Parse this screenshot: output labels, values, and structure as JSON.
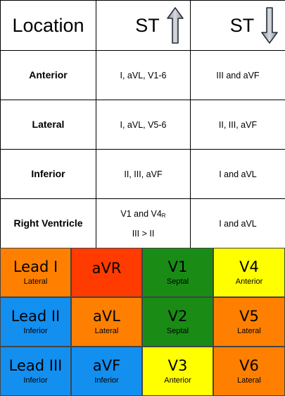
{
  "table": {
    "header": {
      "location": "Location",
      "st_up": "ST",
      "st_down": "ST",
      "up_arrow_icon": "up-arrow-icon",
      "down_arrow_icon": "down-arrow-icon"
    },
    "rows": [
      {
        "location": "Anterior",
        "elevation": "I, aVL, V1-6",
        "depression": "III and aVF"
      },
      {
        "location": "Lateral",
        "elevation": "I, aVL, V5-6",
        "depression": "II, III, aVF"
      },
      {
        "location": "Inferior",
        "elevation": "II, III, aVF",
        "depression": "I and aVL"
      },
      {
        "location": "Right Ventricle",
        "elevation_line1": "V1 and V4",
        "elevation_sub": "R",
        "elevation_line2": "III > II",
        "depression": "I and aVL"
      }
    ]
  },
  "leads": [
    {
      "name": "Lead I",
      "region": "Lateral",
      "color": "#ff8000"
    },
    {
      "name": "aVR",
      "region": "",
      "color": "#ff3b00"
    },
    {
      "name": "V1",
      "region": "Septal",
      "color": "#1a8c16"
    },
    {
      "name": "V4",
      "region": "Anterior",
      "color": "#ffff00"
    },
    {
      "name": "Lead II",
      "region": "Inferior",
      "color": "#138ff0"
    },
    {
      "name": "aVL",
      "region": "Lateral",
      "color": "#ff8000"
    },
    {
      "name": "V2",
      "region": "Septal",
      "color": "#1a8c16"
    },
    {
      "name": "V5",
      "region": "Lateral",
      "color": "#ff8000"
    },
    {
      "name": "Lead III",
      "region": "Inferior",
      "color": "#138ff0"
    },
    {
      "name": "aVF",
      "region": "Inferior",
      "color": "#138ff0"
    },
    {
      "name": "V3",
      "region": "Anterior",
      "color": "#ffff00"
    },
    {
      "name": "V6",
      "region": "Lateral",
      "color": "#ff8000"
    }
  ]
}
